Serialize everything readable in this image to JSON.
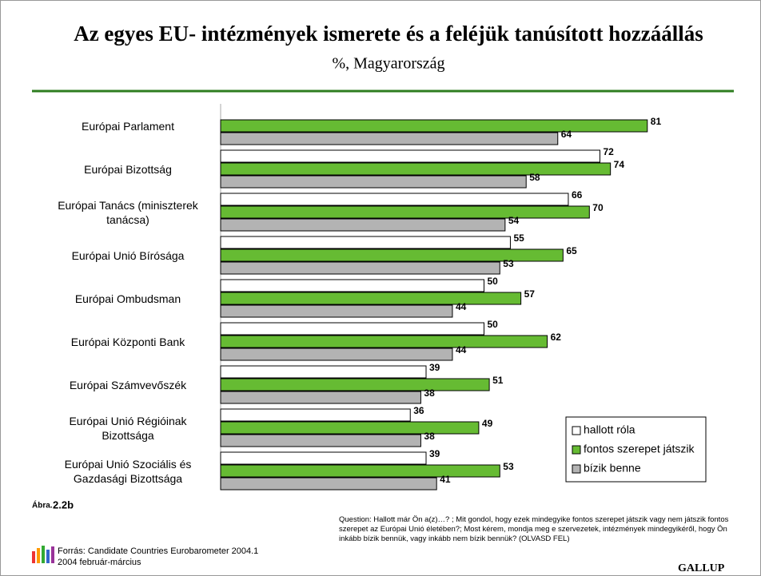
{
  "chart_data": {
    "type": "hbar",
    "title": "Az egyes EU- intézmények ismerete és a feléjük tanúsított hozzáállás",
    "subtitle": "%, Magyarország",
    "categories": [
      "Európai Parlament",
      "Európai Bizottság",
      "Európai Tanács (miniszterek tanácsa)",
      "Európai Unió Bírósága",
      "Európai Ombudsman",
      "Európai Központi Bank",
      "Európai Számvevőszék",
      "Európai Unió Régióinak Bizottsága",
      "Európai Unió Szociális és Gazdasági Bizottsága"
    ],
    "series": [
      {
        "name": "hallott róla",
        "color": "#ffffff",
        "values": [
          null,
          72,
          66,
          55,
          50,
          50,
          39,
          36,
          39
        ]
      },
      {
        "name": "fontos szerepet játszik",
        "color": "#66bb33",
        "values": [
          81,
          74,
          70,
          65,
          57,
          62,
          51,
          49,
          53
        ]
      },
      {
        "name": "bízik benne",
        "color": "#b3b3b3",
        "values": [
          64,
          58,
          54,
          53,
          44,
          44,
          38,
          38,
          41
        ]
      }
    ],
    "xlim": [
      0,
      100
    ],
    "legend": "lower right",
    "figure_label": "Ábra.",
    "figure_number": "2.2b",
    "source": [
      "Forrás: Candidate Countries Eurobarometer 2004.1",
      "2004  február-március"
    ],
    "question": "Question:  Hallott már Ön a(z)…? ; Mit gondol, hogy ezek mindegyike fontos szerepet játszik vagy nem játszik fontos szerepet az Európai Unió életében?; Most kérem, mondja meg e szervezetek, intézmények mindegyikéről, hogy Ön inkább bízik bennük, vagy inkább nem bízik bennük? (OLVASD FEL)",
    "brand": "GALLUP"
  }
}
